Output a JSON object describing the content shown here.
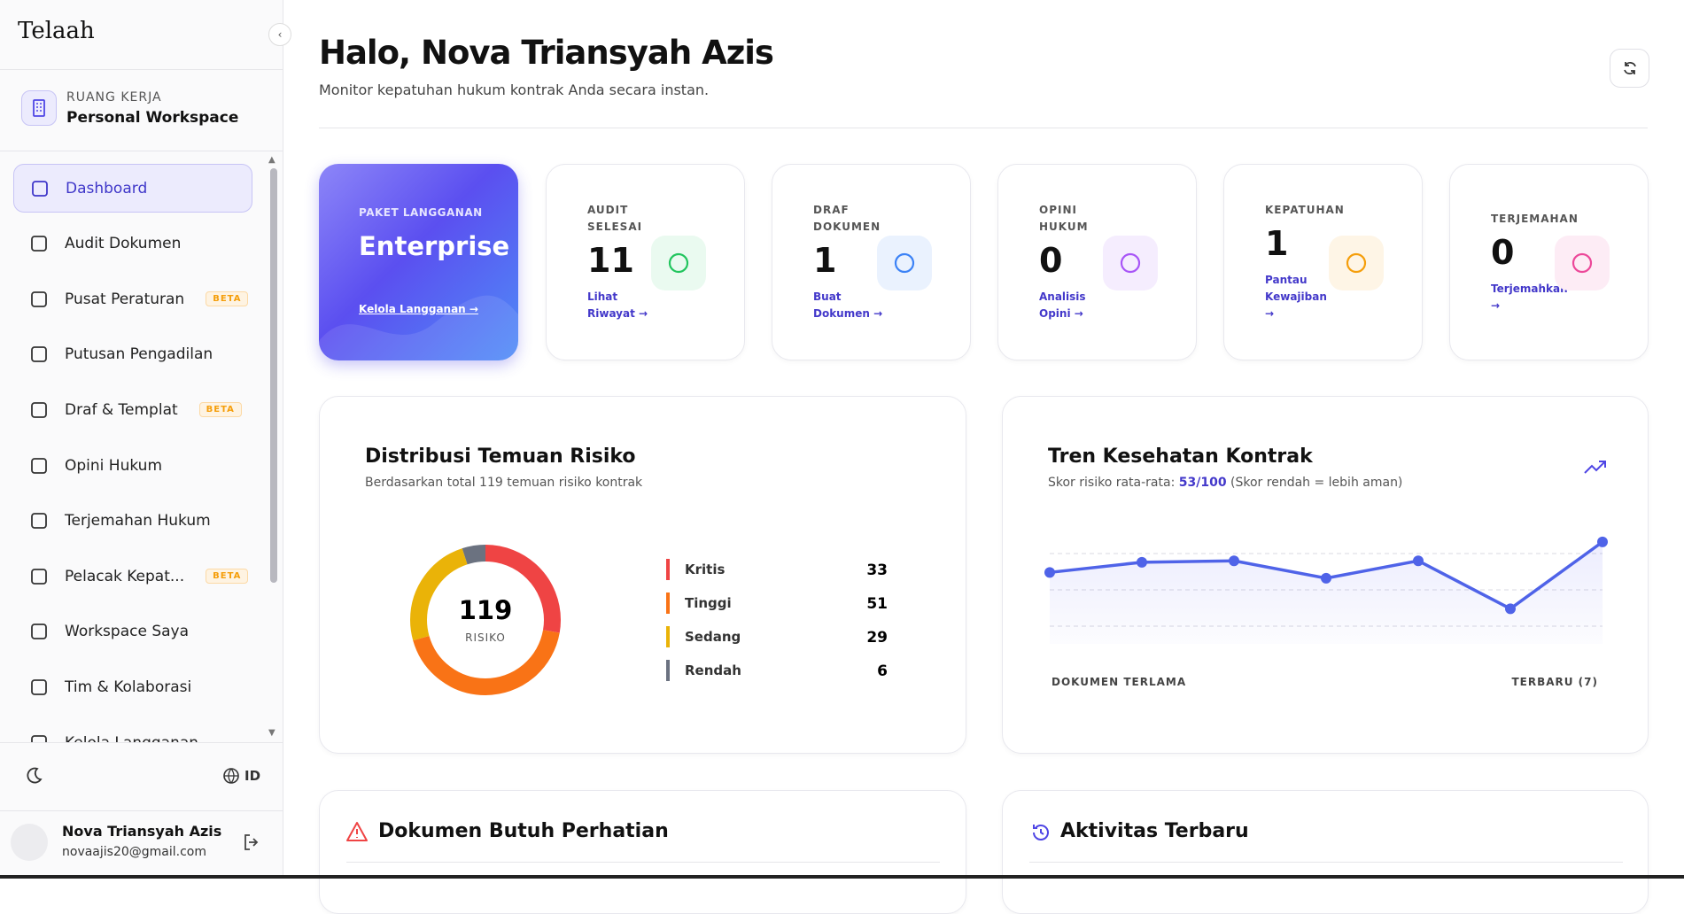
{
  "sidebar": {
    "brand": "Telaah",
    "workspace_label": "RUANG KERJA",
    "workspace_name": "Personal Workspace",
    "nav": [
      {
        "label": "Dashboard"
      },
      {
        "label": "Audit Dokumen"
      },
      {
        "label": "Pusat Peraturan",
        "badge": "BETA"
      },
      {
        "label": "Putusan Pengadilan"
      },
      {
        "label": "Draf & Templat",
        "badge": "BETA"
      },
      {
        "label": "Opini Hukum"
      },
      {
        "label": "Terjemahan Hukum"
      },
      {
        "label": "Pelacak Kepat...",
        "badge": "BETA"
      },
      {
        "label": "Workspace Saya"
      },
      {
        "label": "Tim & Kolaborasi"
      },
      {
        "label": "Kelola Langganan"
      }
    ],
    "language": "ID",
    "user": {
      "name": "Nova Triansyah Azis",
      "email": "novaajis20@gmail.com"
    }
  },
  "header": {
    "title": "Halo, Nova Triansyah Azis",
    "subtitle": "Monitor kepatuhan hukum kontrak Anda secara instan."
  },
  "plan": {
    "label": "PAKET LANGGANAN",
    "name": "Enterprise",
    "link": "Kelola Langganan →"
  },
  "stats": [
    {
      "label": "AUDIT SELESAI",
      "value": 11,
      "link": "Lihat Riwayat →",
      "color": "#22c55e",
      "bg": "#eafaf0"
    },
    {
      "label": "DRAF DOKUMEN",
      "value": 1,
      "link": "Buat Dokumen →",
      "color": "#3b82f6",
      "bg": "#eaf2fe"
    },
    {
      "label": "OPINI HUKUM",
      "value": 0,
      "link": "Analisis Opini →",
      "color": "#a855f7",
      "bg": "#f5edfe"
    },
    {
      "label": "KEPATUHAN",
      "value": 1,
      "link": "Pantau Kewajiban →",
      "color": "#f59e0b",
      "bg": "#fef5e6"
    },
    {
      "label": "TERJEMAHAN",
      "value": 0,
      "link": "Terjemahkan →",
      "color": "#ec4899",
      "bg": "#fdecf5"
    }
  ],
  "risk_card": {
    "title": "Distribusi Temuan Risiko",
    "subtitle": "Berdasarkan total 119 temuan risiko kontrak",
    "chart_data": {
      "type": "donut",
      "total": 119,
      "center_label": "RISIKO",
      "categories": [
        "Kritis",
        "Tinggi",
        "Sedang",
        "Rendah"
      ],
      "colors": [
        "#ef4444",
        "#f97316",
        "#eab308",
        "#6b7280"
      ],
      "values": [
        33,
        51,
        29,
        6
      ]
    }
  },
  "trend_card": {
    "title": "Tren Kesehatan Kontrak",
    "subtitle_prefix": "Skor risiko rata-rata:",
    "subtitle_value": "53/100",
    "subtitle_suffix": "(Skor rendah = lebih aman)",
    "chart_data": {
      "type": "line",
      "color": "#4f63e8",
      "values": [
        62,
        69,
        70,
        58,
        70,
        37,
        83
      ],
      "ylim": [
        0,
        100
      ],
      "yticks": [
        25,
        50,
        75
      ],
      "grid": true,
      "x_start_label": "DOKUMEN TERLAMA",
      "x_end_label": "TERBARU (7)"
    }
  },
  "bottom": {
    "attention_title": "Dokumen Butuh Perhatian",
    "activity_title": "Aktivitas Terbaru"
  }
}
